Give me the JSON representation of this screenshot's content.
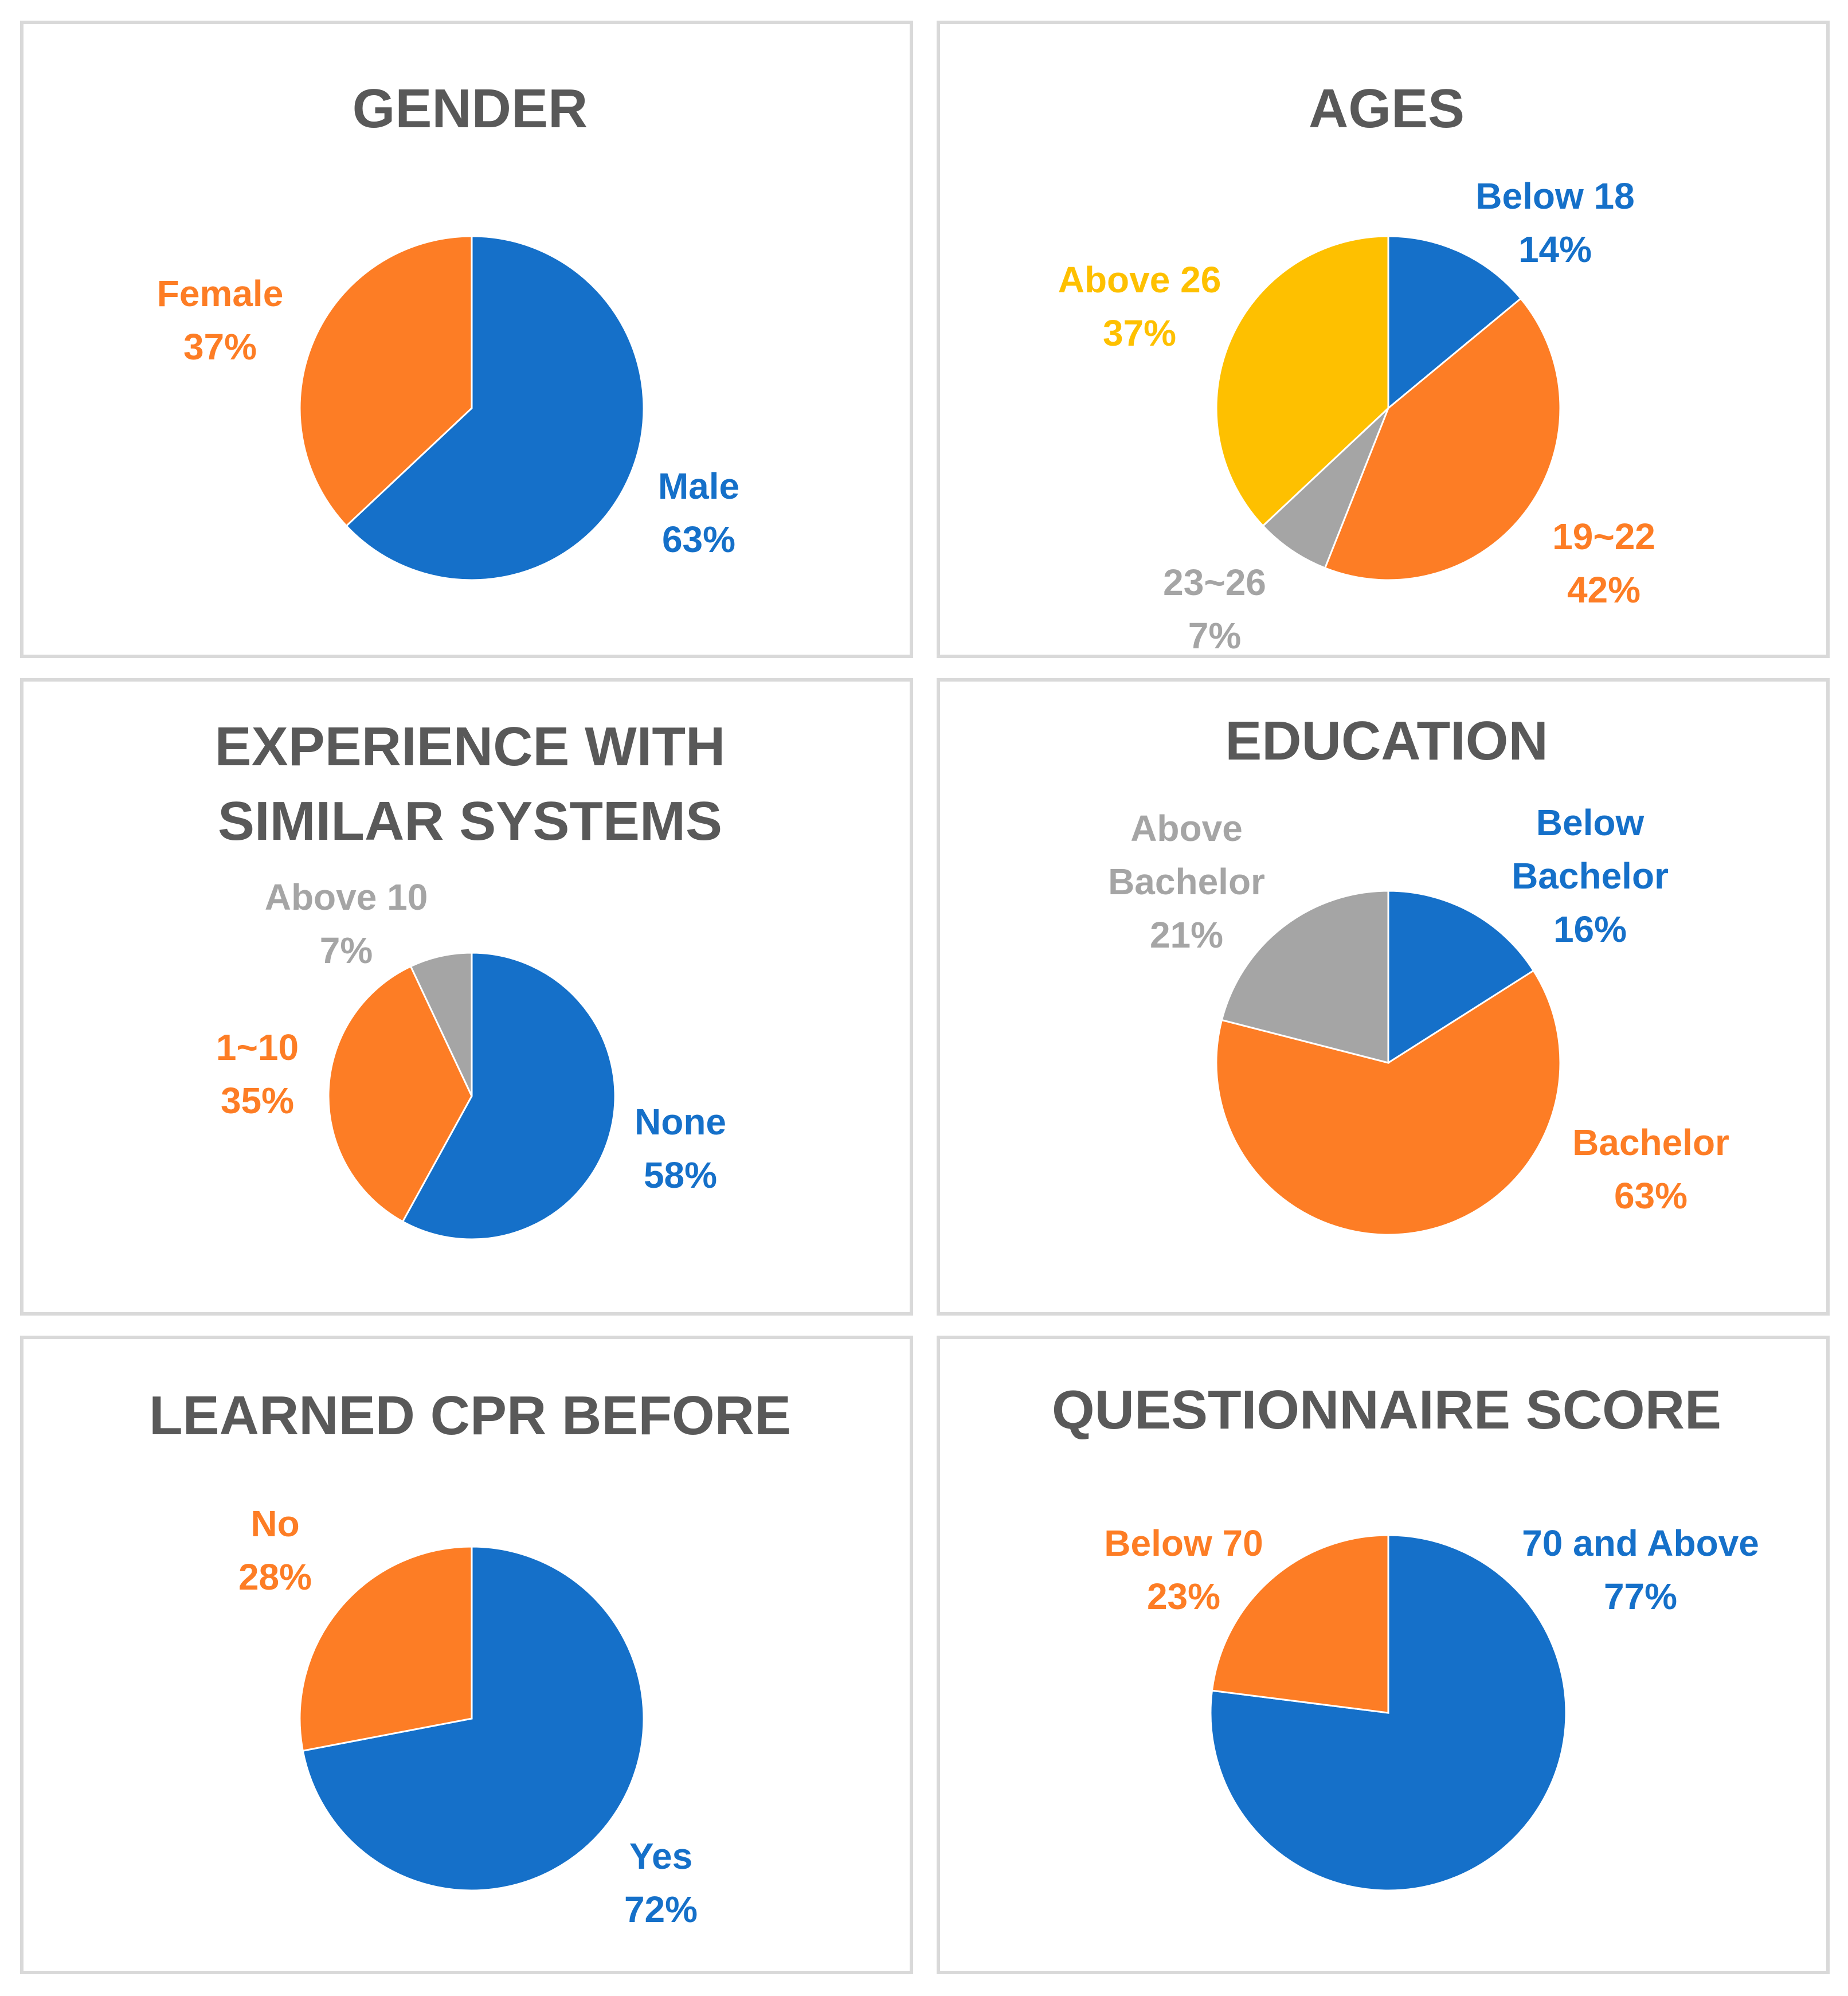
{
  "chart_data": [
    {
      "type": "pie",
      "title": "GENDER",
      "slices": [
        {
          "label": "Male",
          "value": 63,
          "display": "63%",
          "color": "#1570c9"
        },
        {
          "label": "Female",
          "value": 37,
          "display": "37%",
          "color": "#fd7d25"
        }
      ]
    },
    {
      "type": "pie",
      "title": "AGES",
      "slices": [
        {
          "label": "Below 18",
          "value": 14,
          "display": "14%",
          "color": "#1570c9"
        },
        {
          "label": "19~22",
          "value": 42,
          "display": "42%",
          "color": "#fd7d25"
        },
        {
          "label": "23~26",
          "value": 7,
          "display": "7%",
          "color": "#a5a5a5"
        },
        {
          "label": "Above 26",
          "value": 37,
          "display": "37%",
          "color": "#fec000"
        }
      ]
    },
    {
      "type": "pie",
      "title": "EXPERIENCE WITH SIMILAR SYSTEMS",
      "title_lines": [
        "EXPERIENCE WITH",
        "SIMILAR SYSTEMS"
      ],
      "slices": [
        {
          "label": "None",
          "value": 58,
          "display": "58%",
          "color": "#1570c9"
        },
        {
          "label": "1~10",
          "value": 35,
          "display": "35%",
          "color": "#fd7d25"
        },
        {
          "label": "Above 10",
          "value": 7,
          "display": "7%",
          "color": "#a5a5a5"
        }
      ]
    },
    {
      "type": "pie",
      "title": "EDUCATION",
      "slices": [
        {
          "label": "Below Bachelor",
          "label_lines": [
            "Below",
            "Bachelor"
          ],
          "value": 16,
          "display": "16%",
          "color": "#1570c9"
        },
        {
          "label": "Bachelor",
          "value": 63,
          "display": "63%",
          "color": "#fd7d25"
        },
        {
          "label": "Above Bachelor",
          "label_lines": [
            "Above",
            "Bachelor"
          ],
          "value": 21,
          "display": "21%",
          "color": "#a5a5a5"
        }
      ]
    },
    {
      "type": "pie",
      "title": "LEARNED CPR BEFORE",
      "slices": [
        {
          "label": "Yes",
          "value": 72,
          "display": "72%",
          "color": "#1570c9"
        },
        {
          "label": "No",
          "value": 28,
          "display": "28%",
          "color": "#fd7d25"
        }
      ]
    },
    {
      "type": "pie",
      "title": "QUESTIONNAIRE SCORE",
      "slices": [
        {
          "label": "70 and Above",
          "value": 77,
          "display": "77%",
          "color": "#1570c9"
        },
        {
          "label": "Below 70",
          "value": 23,
          "display": "23%",
          "color": "#fd7d25"
        }
      ]
    }
  ]
}
